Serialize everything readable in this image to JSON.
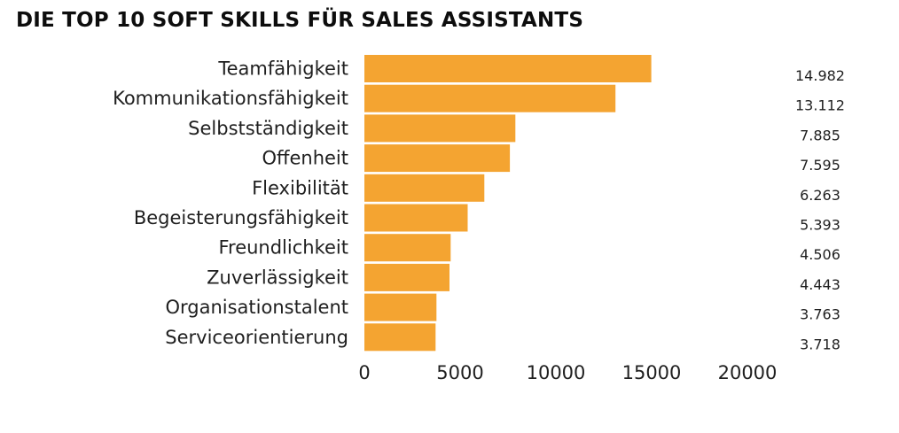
{
  "chart_data": {
    "type": "bar",
    "orientation": "horizontal",
    "title": "DIE TOP 10 SOFT SKILLS FÜR SALES ASSISTANTS",
    "categories": [
      "Teamfähigkeit",
      "Kommunikationsfähigkeit",
      "Selbstständigkeit",
      "Offenheit",
      "Flexibilität",
      "Begeisterungsfähigkeit",
      "Freundlichkeit",
      "Zuverlässigkeit",
      "Organisationstalent",
      "Serviceorientierung"
    ],
    "values": [
      14982,
      13112,
      7885,
      7595,
      6263,
      5393,
      4506,
      4443,
      3763,
      3718
    ],
    "value_labels": [
      "14.982",
      "13.112",
      "7.885",
      "7.595",
      "6.263",
      "5.393",
      "4.506",
      "4.443",
      "3.763",
      "3.718"
    ],
    "xlim": [
      0,
      20000
    ],
    "x_ticks": [
      0,
      5000,
      10000,
      15000,
      20000
    ],
    "x_tick_labels": [
      "0",
      "5000",
      "10000",
      "15000",
      "20000"
    ],
    "grid": false,
    "legend": "none",
    "bar_color": "#F4A431"
  }
}
